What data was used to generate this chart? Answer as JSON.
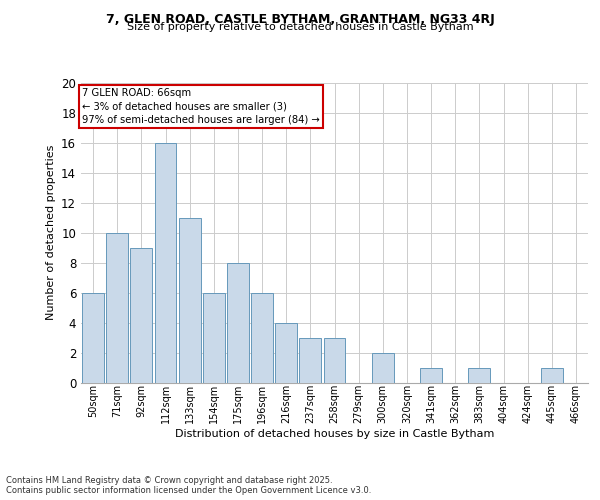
{
  "title1": "7, GLEN ROAD, CASTLE BYTHAM, GRANTHAM, NG33 4RJ",
  "title2": "Size of property relative to detached houses in Castle Bytham",
  "xlabel": "Distribution of detached houses by size in Castle Bytham",
  "ylabel": "Number of detached properties",
  "footer1": "Contains HM Land Registry data © Crown copyright and database right 2025.",
  "footer2": "Contains public sector information licensed under the Open Government Licence v3.0.",
  "annotation_title": "7 GLEN ROAD: 66sqm",
  "annotation_line2": "← 3% of detached houses are smaller (3)",
  "annotation_line3": "97% of semi-detached houses are larger (84) →",
  "bar_labels": [
    "50sqm",
    "71sqm",
    "92sqm",
    "112sqm",
    "133sqm",
    "154sqm",
    "175sqm",
    "196sqm",
    "216sqm",
    "237sqm",
    "258sqm",
    "279sqm",
    "300sqm",
    "320sqm",
    "341sqm",
    "362sqm",
    "383sqm",
    "404sqm",
    "424sqm",
    "445sqm",
    "466sqm"
  ],
  "bar_values": [
    6,
    10,
    9,
    16,
    11,
    6,
    8,
    6,
    4,
    3,
    3,
    0,
    2,
    0,
    1,
    0,
    1,
    0,
    0,
    1,
    0
  ],
  "bar_color": "#c9d9e9",
  "bar_edge_color": "#6699bb",
  "bg_color": "#ffffff",
  "grid_color": "#cccccc",
  "annotation_box_color": "#ffffff",
  "annotation_box_edge": "#cc0000",
  "ylim": [
    0,
    20
  ],
  "yticks": [
    0,
    2,
    4,
    6,
    8,
    10,
    12,
    14,
    16,
    18,
    20
  ]
}
